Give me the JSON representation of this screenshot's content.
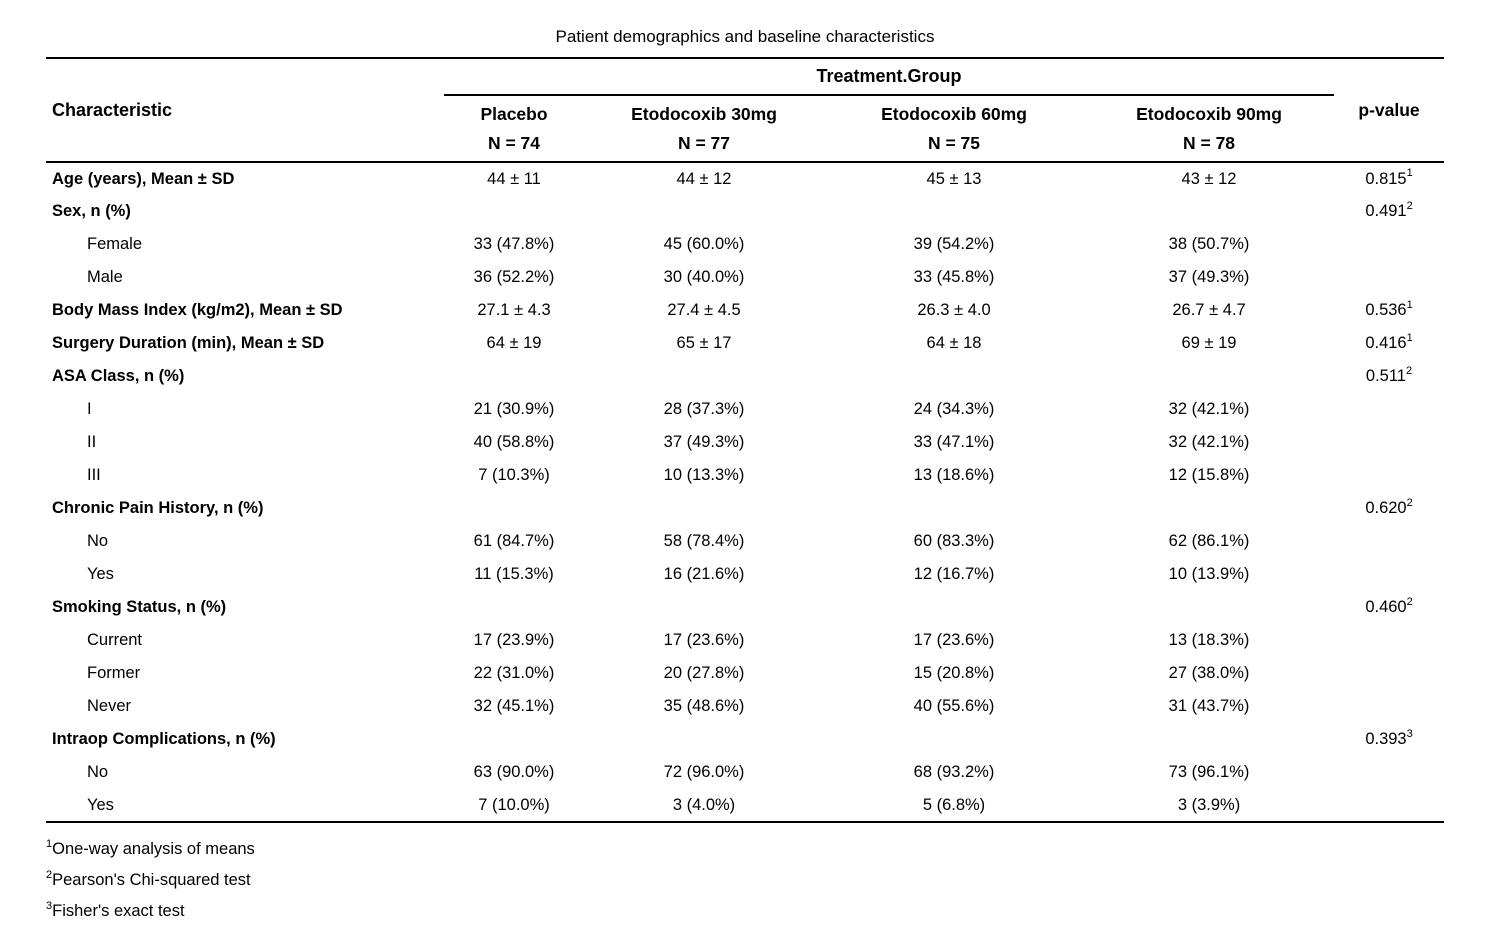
{
  "colors": {
    "text": "#000000",
    "background": "#ffffff",
    "rule": "#000000"
  },
  "title": "Patient demographics and baseline characteristics",
  "table": {
    "stub_header": "Characteristic",
    "spanner_label": "Treatment.Group",
    "pvalue_header": "p-value",
    "columns": [
      {
        "name": "Placebo",
        "n": "N = 74"
      },
      {
        "name": "Etodocoxib 30mg",
        "n": "N = 77"
      },
      {
        "name": "Etodocoxib 60mg",
        "n": "N = 75"
      },
      {
        "name": "Etodocoxib 90mg",
        "n": "N = 78"
      }
    ],
    "rows": [
      {
        "label": "Age (years), Mean ± SD",
        "bold": true,
        "indent": false,
        "values": [
          "44 ± 11",
          "44 ± 12",
          "45 ± 13",
          "43 ± 12"
        ],
        "pvalue": "0.815",
        "pnote": "1"
      },
      {
        "label": "Sex, n (%)",
        "bold": true,
        "indent": false,
        "values": [
          "",
          "",
          "",
          ""
        ],
        "pvalue": "0.491",
        "pnote": "2"
      },
      {
        "label": "Female",
        "bold": false,
        "indent": true,
        "values": [
          "33 (47.8%)",
          "45 (60.0%)",
          "39 (54.2%)",
          "38 (50.7%)"
        ],
        "pvalue": "",
        "pnote": ""
      },
      {
        "label": "Male",
        "bold": false,
        "indent": true,
        "values": [
          "36 (52.2%)",
          "30 (40.0%)",
          "33 (45.8%)",
          "37 (49.3%)"
        ],
        "pvalue": "",
        "pnote": ""
      },
      {
        "label": "Body Mass Index (kg/m2), Mean ± SD",
        "bold": true,
        "indent": false,
        "values": [
          "27.1 ± 4.3",
          "27.4 ± 4.5",
          "26.3 ± 4.0",
          "26.7 ± 4.7"
        ],
        "pvalue": "0.536",
        "pnote": "1"
      },
      {
        "label": "Surgery Duration (min), Mean ± SD",
        "bold": true,
        "indent": false,
        "values": [
          "64 ± 19",
          "65 ± 17",
          "64 ± 18",
          "69 ± 19"
        ],
        "pvalue": "0.416",
        "pnote": "1"
      },
      {
        "label": "ASA Class, n (%)",
        "bold": true,
        "indent": false,
        "values": [
          "",
          "",
          "",
          ""
        ],
        "pvalue": "0.511",
        "pnote": "2"
      },
      {
        "label": "I",
        "bold": false,
        "indent": true,
        "values": [
          "21 (30.9%)",
          "28 (37.3%)",
          "24 (34.3%)",
          "32 (42.1%)"
        ],
        "pvalue": "",
        "pnote": ""
      },
      {
        "label": "II",
        "bold": false,
        "indent": true,
        "values": [
          "40 (58.8%)",
          "37 (49.3%)",
          "33 (47.1%)",
          "32 (42.1%)"
        ],
        "pvalue": "",
        "pnote": ""
      },
      {
        "label": "III",
        "bold": false,
        "indent": true,
        "values": [
          "7 (10.3%)",
          "10 (13.3%)",
          "13 (18.6%)",
          "12 (15.8%)"
        ],
        "pvalue": "",
        "pnote": ""
      },
      {
        "label": "Chronic Pain History, n (%)",
        "bold": true,
        "indent": false,
        "values": [
          "",
          "",
          "",
          ""
        ],
        "pvalue": "0.620",
        "pnote": "2"
      },
      {
        "label": "No",
        "bold": false,
        "indent": true,
        "values": [
          "61 (84.7%)",
          "58 (78.4%)",
          "60 (83.3%)",
          "62 (86.1%)"
        ],
        "pvalue": "",
        "pnote": ""
      },
      {
        "label": "Yes",
        "bold": false,
        "indent": true,
        "values": [
          "11 (15.3%)",
          "16 (21.6%)",
          "12 (16.7%)",
          "10 (13.9%)"
        ],
        "pvalue": "",
        "pnote": ""
      },
      {
        "label": "Smoking Status, n (%)",
        "bold": true,
        "indent": false,
        "values": [
          "",
          "",
          "",
          ""
        ],
        "pvalue": "0.460",
        "pnote": "2"
      },
      {
        "label": "Current",
        "bold": false,
        "indent": true,
        "values": [
          "17 (23.9%)",
          "17 (23.6%)",
          "17 (23.6%)",
          "13 (18.3%)"
        ],
        "pvalue": "",
        "pnote": ""
      },
      {
        "label": "Former",
        "bold": false,
        "indent": true,
        "values": [
          "22 (31.0%)",
          "20 (27.8%)",
          "15 (20.8%)",
          "27 (38.0%)"
        ],
        "pvalue": "",
        "pnote": ""
      },
      {
        "label": "Never",
        "bold": false,
        "indent": true,
        "values": [
          "32 (45.1%)",
          "35 (48.6%)",
          "40 (55.6%)",
          "31 (43.7%)"
        ],
        "pvalue": "",
        "pnote": ""
      },
      {
        "label": "Intraop Complications, n (%)",
        "bold": true,
        "indent": false,
        "values": [
          "",
          "",
          "",
          ""
        ],
        "pvalue": "0.393",
        "pnote": "3"
      },
      {
        "label": "No",
        "bold": false,
        "indent": true,
        "values": [
          "63 (90.0%)",
          "72 (96.0%)",
          "68 (93.2%)",
          "73 (96.1%)"
        ],
        "pvalue": "",
        "pnote": ""
      },
      {
        "label": "Yes",
        "bold": false,
        "indent": true,
        "values": [
          "7 (10.0%)",
          "3 (4.0%)",
          "5 (6.8%)",
          "3 (3.9%)"
        ],
        "pvalue": "",
        "pnote": ""
      }
    ]
  },
  "footnotes": [
    {
      "marker": "1",
      "text": "One-way analysis of means"
    },
    {
      "marker": "2",
      "text": "Pearson's Chi-squared test"
    },
    {
      "marker": "3",
      "text": "Fisher's exact test"
    }
  ]
}
